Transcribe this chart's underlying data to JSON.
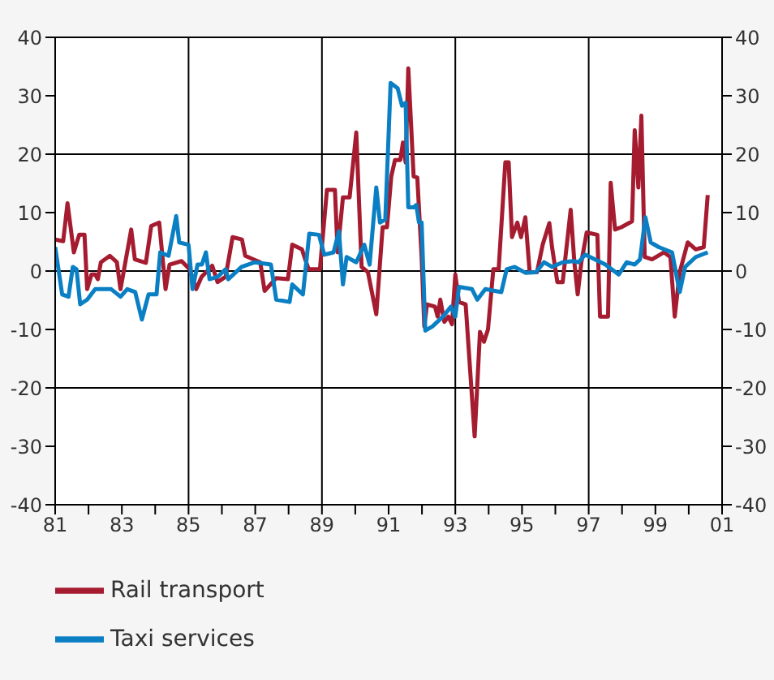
{
  "chart_data": {
    "type": "line",
    "xlim": [
      1981,
      2001
    ],
    "xticks": [
      {
        "value": 1981,
        "label": "81"
      },
      {
        "value": 1982,
        "label": null
      },
      {
        "value": 1983,
        "label": "83"
      },
      {
        "value": 1984,
        "label": null
      },
      {
        "value": 1985,
        "label": "85"
      },
      {
        "value": 1986,
        "label": null
      },
      {
        "value": 1987,
        "label": "87"
      },
      {
        "value": 1988,
        "label": null
      },
      {
        "value": 1989,
        "label": "89"
      },
      {
        "value": 1990,
        "label": null
      },
      {
        "value": 1991,
        "label": "91"
      },
      {
        "value": 1992,
        "label": null
      },
      {
        "value": 1993,
        "label": "93"
      },
      {
        "value": 1994,
        "label": null
      },
      {
        "value": 1995,
        "label": "95"
      },
      {
        "value": 1996,
        "label": null
      },
      {
        "value": 1997,
        "label": "97"
      },
      {
        "value": 1998,
        "label": null
      },
      {
        "value": 1999,
        "label": "99"
      },
      {
        "value": 2000,
        "label": null
      },
      {
        "value": 2001,
        "label": "01"
      }
    ],
    "ylim": [
      -40,
      40
    ],
    "yticks": [
      -40,
      -30,
      -20,
      -10,
      0,
      10,
      20,
      30,
      40
    ],
    "y2lim": [
      -40,
      40
    ],
    "y2ticks": [
      -40,
      -30,
      -20,
      -10,
      0,
      10,
      20,
      30,
      40
    ],
    "grid": true,
    "legend": "bottom",
    "line_style": "solid",
    "series": [
      {
        "name": "Rail transport",
        "color": "#a51c30",
        "x": [
          1981.0,
          1981.24,
          1981.37,
          1981.56,
          1981.72,
          1981.88,
          1981.96,
          1982.09,
          1982.2,
          1982.28,
          1982.37,
          1982.64,
          1982.85,
          1982.96,
          1983.28,
          1983.39,
          1983.72,
          1983.88,
          1984.12,
          1984.31,
          1984.43,
          1984.79,
          1985.03,
          1985.23,
          1985.39,
          1985.71,
          1985.87,
          1986.11,
          1986.32,
          1986.6,
          1986.7,
          1987.15,
          1987.28,
          1987.63,
          1987.98,
          1988.11,
          1988.4,
          1988.6,
          1988.94,
          1989.15,
          1989.39,
          1989.47,
          1989.63,
          1989.83,
          1990.03,
          1990.19,
          1990.38,
          1990.63,
          1990.82,
          1990.95,
          1991.08,
          1991.19,
          1991.35,
          1991.43,
          1991.51,
          1991.59,
          1991.75,
          1991.86,
          1991.99,
          1992.07,
          1992.15,
          1992.39,
          1992.47,
          1992.55,
          1992.67,
          1992.79,
          1992.9,
          1993.0,
          1993.11,
          1993.31,
          1993.58,
          1993.74,
          1993.86,
          1993.98,
          1994.14,
          1994.3,
          1994.5,
          1994.6,
          1994.7,
          1994.86,
          1994.97,
          1995.1,
          1995.23,
          1995.45,
          1995.62,
          1995.82,
          1995.9,
          1996.06,
          1996.22,
          1996.46,
          1996.57,
          1996.67,
          1996.78,
          1996.94,
          1997.26,
          1997.34,
          1997.58,
          1997.66,
          1997.79,
          1997.98,
          1998.3,
          1998.38,
          1998.49,
          1998.58,
          1998.68,
          1998.9,
          1999.26,
          1999.45,
          1999.58,
          1999.73,
          1999.97,
          2000.21,
          2000.45,
          2000.57
        ],
        "values": [
          5.4,
          5.1,
          11.6,
          3.2,
          6.2,
          6.2,
          -3.1,
          -0.6,
          -0.6,
          -1.4,
          1.5,
          2.6,
          1.5,
          -3.1,
          7.1,
          2.0,
          1.4,
          7.7,
          8.3,
          -3.1,
          1.1,
          1.7,
          0.3,
          -3.1,
          -1.0,
          0.9,
          -1.9,
          -1.0,
          5.8,
          5.4,
          2.6,
          1.5,
          -3.4,
          -1.2,
          -1.4,
          4.5,
          3.7,
          0.3,
          0.3,
          13.9,
          13.9,
          3.2,
          12.6,
          12.6,
          23.7,
          0.7,
          -0.2,
          -7.4,
          7.5,
          7.5,
          16.2,
          19.0,
          19.0,
          22.0,
          18.6,
          34.7,
          16.2,
          16.0,
          2.4,
          -9.5,
          -5.7,
          -6.1,
          -7.8,
          -4.9,
          -8.7,
          -7.8,
          -9.1,
          -0.6,
          -5.3,
          -5.7,
          -28.3,
          -10.4,
          -12.1,
          -10.0,
          0.3,
          0.3,
          18.6,
          18.6,
          5.8,
          8.3,
          5.8,
          9.2,
          -0.2,
          -0.2,
          4.5,
          8.2,
          4.1,
          -1.9,
          -1.9,
          10.5,
          1.5,
          -4.0,
          1.5,
          6.6,
          6.2,
          -7.8,
          -7.8,
          15.1,
          7.1,
          7.5,
          8.5,
          24.1,
          14.3,
          26.6,
          2.4,
          2.0,
          3.2,
          2.4,
          -7.8,
          -0.2,
          4.9,
          3.7,
          4.1,
          13.0
        ]
      },
      {
        "name": "Taxi services",
        "color": "#0a7fc4",
        "x": [
          1981.0,
          1981.21,
          1981.4,
          1981.53,
          1981.64,
          1981.75,
          1981.96,
          1982.2,
          1982.68,
          1982.96,
          1983.16,
          1983.4,
          1983.6,
          1983.8,
          1984.04,
          1984.15,
          1984.4,
          1984.63,
          1984.72,
          1985.0,
          1985.12,
          1985.27,
          1985.4,
          1985.52,
          1985.63,
          1985.87,
          1986.11,
          1986.19,
          1986.59,
          1986.99,
          1987.47,
          1987.63,
          1988.03,
          1988.11,
          1988.43,
          1988.62,
          1988.91,
          1989.07,
          1989.35,
          1989.51,
          1989.63,
          1989.74,
          1990.03,
          1990.27,
          1990.43,
          1990.63,
          1990.74,
          1990.9,
          1991.06,
          1991.27,
          1991.4,
          1991.51,
          1991.59,
          1991.75,
          1991.83,
          1991.91,
          1991.99,
          1992.1,
          1992.31,
          1992.63,
          1992.87,
          1993.0,
          1993.11,
          1993.5,
          1993.66,
          1993.9,
          1994.38,
          1994.54,
          1994.78,
          1995.1,
          1995.42,
          1995.66,
          1995.9,
          1996.22,
          1996.54,
          1996.7,
          1996.89,
          1997.18,
          1997.5,
          1997.9,
          1998.14,
          1998.38,
          1998.54,
          1998.7,
          1998.86,
          1999.1,
          1999.5,
          1999.73,
          1999.89,
          2000.21,
          2000.57
        ],
        "values": [
          4.1,
          -4.0,
          -4.4,
          0.7,
          0.3,
          -5.7,
          -4.9,
          -3.1,
          -3.1,
          -4.4,
          -3.1,
          -3.6,
          -8.3,
          -4.0,
          -4.0,
          3.2,
          2.6,
          9.4,
          4.9,
          4.5,
          -3.1,
          1.1,
          1.1,
          3.2,
          -1.4,
          -1.0,
          0.3,
          -1.4,
          0.7,
          1.5,
          1.1,
          -4.9,
          -5.3,
          -2.3,
          -4.0,
          6.4,
          6.2,
          2.8,
          3.2,
          6.8,
          -2.3,
          2.4,
          1.5,
          4.5,
          1.1,
          14.3,
          8.3,
          8.8,
          32.2,
          31.3,
          28.3,
          28.8,
          10.9,
          10.9,
          11.3,
          8.3,
          8.3,
          -10.2,
          -9.5,
          -7.8,
          -6.1,
          -7.8,
          -2.7,
          -3.1,
          -4.9,
          -3.1,
          -3.6,
          0.3,
          0.7,
          -0.3,
          -0.2,
          1.5,
          0.7,
          1.5,
          1.7,
          1.5,
          2.8,
          2.0,
          1.1,
          -0.6,
          1.5,
          1.1,
          2.0,
          9.2,
          4.9,
          4.1,
          3.2,
          -3.6,
          0.7,
          2.4,
          3.2
        ]
      }
    ]
  }
}
